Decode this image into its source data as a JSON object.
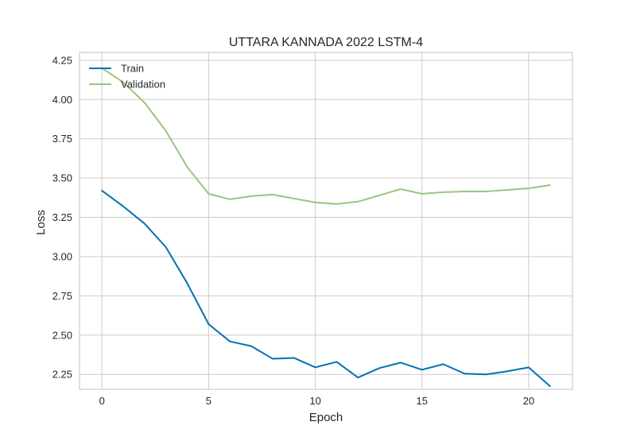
{
  "chart_data": {
    "type": "line",
    "title": "UTTARA KANNADA 2022 LSTM-4",
    "xlabel": "Epoch",
    "ylabel": "Loss",
    "x": [
      0,
      1,
      2,
      3,
      4,
      5,
      6,
      7,
      8,
      9,
      10,
      11,
      12,
      13,
      14,
      15,
      16,
      17,
      18,
      19,
      20,
      21
    ],
    "xlim": [
      -1.05,
      22.05
    ],
    "ylim": [
      2.155,
      4.3
    ],
    "xticks": [
      0,
      5,
      10,
      15,
      20
    ],
    "yticks": [
      2.25,
      2.5,
      2.75,
      3.0,
      3.25,
      3.5,
      3.75,
      4.0,
      4.25
    ],
    "ytick_labels": [
      "2.25",
      "2.50",
      "2.75",
      "3.00",
      "3.25",
      "3.50",
      "3.75",
      "4.00",
      "4.25"
    ],
    "grid": true,
    "legend": "top-left",
    "series": [
      {
        "name": "Train",
        "color": "#0072b2",
        "values": [
          3.42,
          3.32,
          3.21,
          3.06,
          2.83,
          2.57,
          2.46,
          2.43,
          2.35,
          2.355,
          2.295,
          2.33,
          2.23,
          2.29,
          2.325,
          2.28,
          2.315,
          2.255,
          2.25,
          2.27,
          2.295,
          2.175
        ]
      },
      {
        "name": "Validation",
        "color": "#9ac57f",
        "values": [
          4.2,
          4.11,
          3.98,
          3.8,
          3.57,
          3.4,
          3.365,
          3.385,
          3.395,
          3.37,
          3.345,
          3.335,
          3.35,
          3.39,
          3.43,
          3.4,
          3.41,
          3.415,
          3.415,
          3.425,
          3.435,
          3.455
        ]
      }
    ]
  }
}
